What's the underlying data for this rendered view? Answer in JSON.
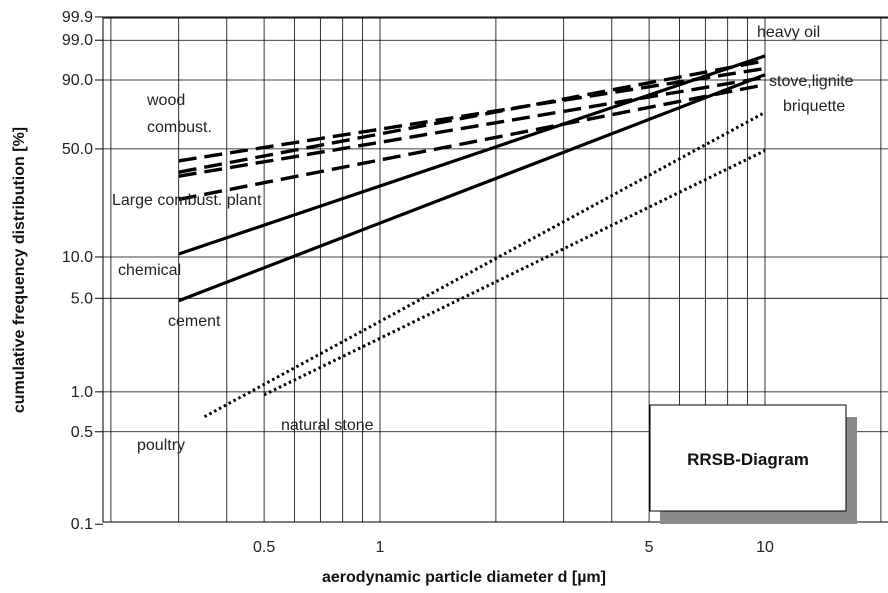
{
  "chart_data": {
    "type": "line",
    "title": "",
    "xlabel": "aerodynamic particle diameter d [µm]",
    "ylabel": "cumulative frequency distribution [%]",
    "x_scale": "log",
    "y_scale": "rrsb",
    "x_ticks": [
      {
        "value": 0.5,
        "label": "0.5"
      },
      {
        "value": 1,
        "label": "1"
      },
      {
        "value": 5,
        "label": "5"
      },
      {
        "value": 10,
        "label": "10"
      }
    ],
    "y_ticks": [
      {
        "value": 99.9,
        "label": "99.9"
      },
      {
        "value": 99.0,
        "label": "99.0"
      },
      {
        "value": 90.0,
        "label": "90.0"
      },
      {
        "value": 50.0,
        "label": "50.0"
      },
      {
        "value": 10.0,
        "label": "10.0"
      },
      {
        "value": 5.0,
        "label": "5.0"
      },
      {
        "value": 1.0,
        "label": "1.0"
      },
      {
        "value": 0.5,
        "label": "0.5"
      },
      {
        "value": 0.1,
        "label": "0.1"
      }
    ],
    "grid": true,
    "diagram_label": "RRSB-Diagram",
    "series": [
      {
        "style": "solid",
        "x": [
          0.3,
          10
        ],
        "y": [
          10.5,
          97
        ]
      },
      {
        "style": "solid",
        "x": [
          0.3,
          10
        ],
        "y": [
          4.8,
          92
        ]
      },
      {
        "style": "dashed",
        "x": [
          0.3,
          10
        ],
        "y": [
          43,
          94
        ]
      },
      {
        "style": "dashed",
        "x": [
          0.3,
          10
        ],
        "y": [
          37,
          96
        ]
      },
      {
        "style": "dashed",
        "x": [
          0.3,
          10
        ],
        "y": [
          35,
          91
        ]
      },
      {
        "style": "dashed",
        "x": [
          0.3,
          10
        ],
        "y": [
          25,
          88
        ]
      },
      {
        "style": "dotted",
        "x": [
          0.35,
          10
        ],
        "y": [
          0.65,
          73
        ]
      },
      {
        "style": "dotted",
        "x": [
          0.5,
          10
        ],
        "y": [
          0.95,
          49
        ]
      }
    ],
    "annotations": [
      {
        "text": "heavy oil"
      },
      {
        "text": "stove,lignite"
      },
      {
        "text": "briquette"
      },
      {
        "text": "wood"
      },
      {
        "text": "combust."
      },
      {
        "text": "Large combust. plant"
      },
      {
        "text": "chemical"
      },
      {
        "text": "cement"
      },
      {
        "text": "natural stone"
      },
      {
        "text": "poultry"
      }
    ]
  }
}
